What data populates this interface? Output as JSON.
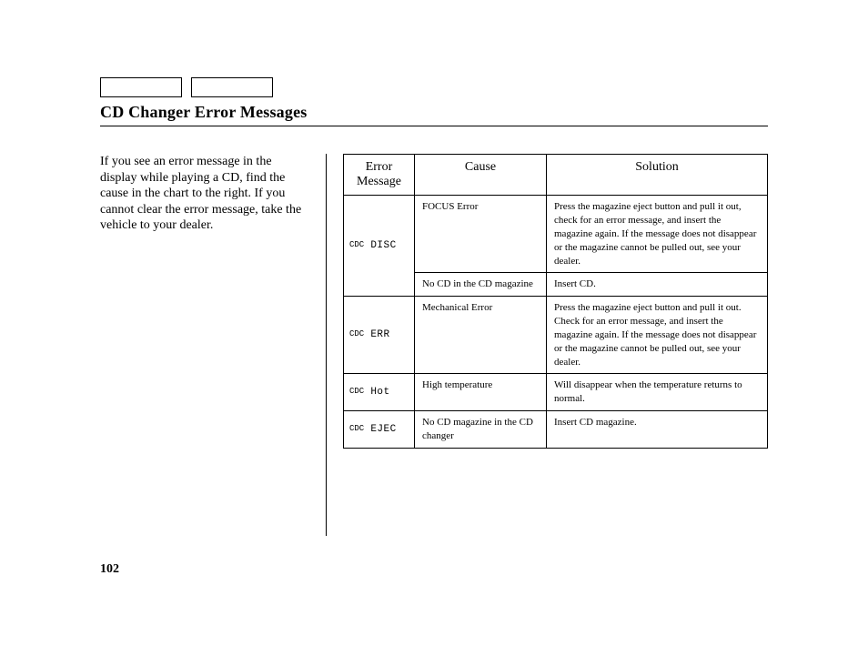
{
  "title": "CD Changer Error Messages",
  "intro": "If you see an error message in the display while playing a CD, find the cause in the chart to the right. If you cannot clear the error message, take the vehicle to your dealer.",
  "headers": {
    "error": "Error Message",
    "cause": "Cause",
    "solution": "Solution"
  },
  "rows": [
    {
      "code_prefix": "CDC",
      "code": "DISC",
      "cause": "FOCUS Error",
      "solution": "Press the magazine eject button and pull it out, check for an error message, and insert the magazine again. If the message does not disappear or the magazine cannot be pulled out, see your dealer."
    },
    {
      "cause": "No CD in the CD magazine",
      "solution": "Insert CD."
    },
    {
      "code_prefix": "CDC",
      "code": "ERR",
      "cause": "Mechanical Error",
      "solution": "Press the magazine eject button and pull it out. Check for an error message, and insert the magazine again. If the message does not disappear or the magazine cannot be pulled out, see your dealer."
    },
    {
      "code_prefix": "CDC",
      "code": "Hot",
      "cause": "High temperature",
      "solution": "Will disappear when the temperature returns to normal."
    },
    {
      "code_prefix": "CDC",
      "code": "EJEC",
      "cause": "No CD magazine in the CD changer",
      "solution": "Insert CD magazine."
    }
  ],
  "page_number": "102"
}
